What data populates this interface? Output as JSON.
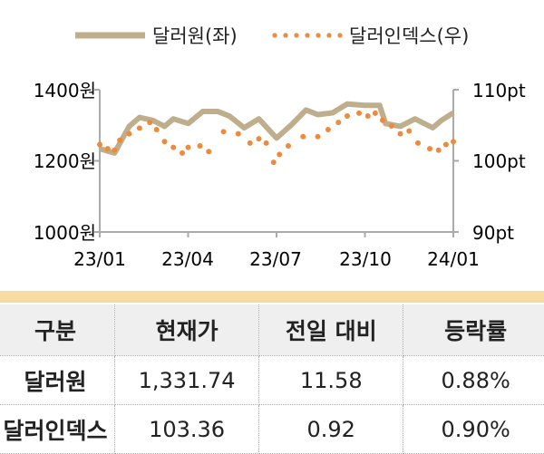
{
  "chart_data": {
    "type": "line",
    "legend": [
      "달러원(좌)",
      "달러인덱스(우)"
    ],
    "legend_placement": "top",
    "x_ticks": [
      "23/01",
      "23/04",
      "23/07",
      "23/10",
      "24/01"
    ],
    "xlim": [
      0,
      12
    ],
    "y_left": {
      "ticks": [
        "1400원",
        "1200원",
        "1000원"
      ],
      "ylim": [
        1000,
        1400
      ]
    },
    "y_right": {
      "ticks": [
        "110pt",
        "100pt",
        "90pt"
      ],
      "ylim": [
        90,
        110
      ]
    },
    "colors": {
      "won": "#bfae8c",
      "index": "#ee8a3a"
    },
    "series": [
      {
        "name": "달러원",
        "axis": "left",
        "style": "line",
        "x": [
          0,
          0.5,
          1.0,
          1.35,
          1.8,
          2.2,
          2.5,
          3.0,
          3.5,
          4.0,
          4.4,
          4.9,
          5.4,
          6.0,
          6.5,
          7.0,
          7.4,
          7.9,
          8.4,
          9.0,
          9.5,
          9.7,
          10.2,
          10.7,
          11.3,
          11.6,
          12
        ],
        "y": [
          1234,
          1222,
          1297,
          1322,
          1314,
          1297,
          1318,
          1305,
          1339,
          1339,
          1326,
          1293,
          1318,
          1264,
          1301,
          1343,
          1330,
          1335,
          1360,
          1356,
          1356,
          1305,
          1297,
          1318,
          1293,
          1314,
          1335
        ]
      },
      {
        "name": "달러인덱스",
        "axis": "right",
        "style": "dots",
        "x": [
          0,
          0.27,
          0.5,
          0.68,
          1.0,
          1.35,
          1.7,
          1.93,
          2.2,
          2.5,
          2.8,
          3.0,
          3.4,
          3.7,
          4.2,
          4.7,
          5.1,
          5.4,
          5.65,
          5.9,
          6.1,
          6.4,
          6.9,
          7.4,
          7.75,
          8.1,
          8.4,
          8.8,
          9.1,
          9.35,
          9.6,
          9.9,
          10.2,
          10.5,
          10.8,
          11.2,
          11.5,
          11.75,
          12
        ],
        "y": [
          102.3,
          101.7,
          101.5,
          102.9,
          103.8,
          104.6,
          105.4,
          104.4,
          102.7,
          101.9,
          101.1,
          101.9,
          102.1,
          101.3,
          104.1,
          103.8,
          102.5,
          103.1,
          102.5,
          99.8,
          100.9,
          102.1,
          103.4,
          103.4,
          104.4,
          105.4,
          106.3,
          106.7,
          106.3,
          106.7,
          105.7,
          104.9,
          103.8,
          104.2,
          102.5,
          101.7,
          101.5,
          102.3,
          102.7
        ]
      }
    ]
  },
  "table": {
    "headers": [
      "구분",
      "현재가",
      "전일 대비",
      "등락률"
    ],
    "rows": [
      [
        "달러원",
        "1,331.74",
        "11.58",
        "0.88%"
      ],
      [
        "달러인덱스",
        "103.36",
        "0.92",
        "0.90%"
      ]
    ]
  }
}
